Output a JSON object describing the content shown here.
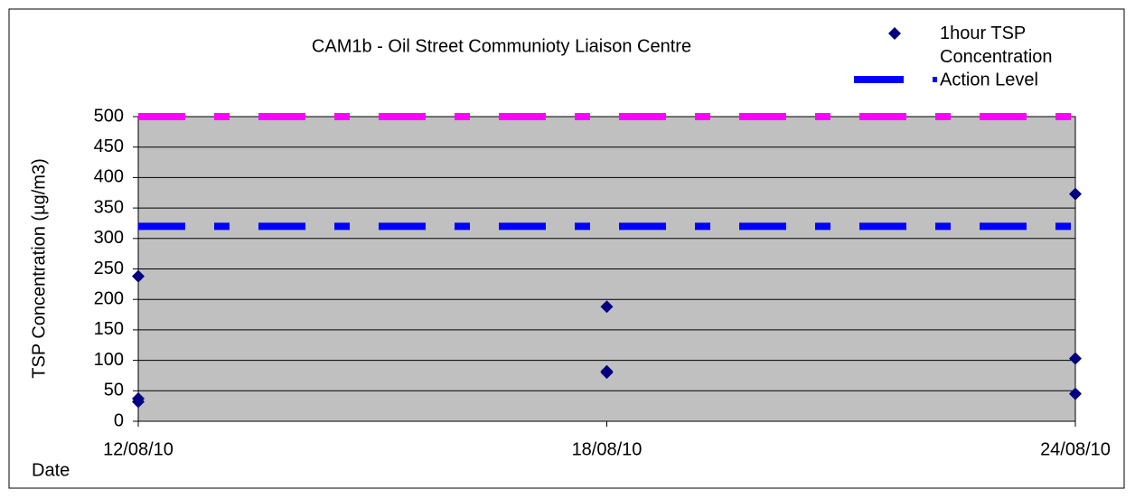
{
  "chart_data": {
    "type": "scatter",
    "title": "CAM1b - Oil Street Communioty Liaison Centre",
    "x_label": "Date",
    "y_label": "TSP Concentration (µg/m3)",
    "series": [
      {
        "name": "1hour TSP Concentration",
        "color": "#000080",
        "x": [
          "12/08/10",
          "12/08/10",
          "12/08/10",
          "18/08/10",
          "18/08/10",
          "18/08/10",
          "24/08/10",
          "24/08/10",
          "24/08/10"
        ],
        "values": [
          238,
          37,
          32,
          188,
          82,
          80,
          373,
          103,
          45
        ]
      }
    ],
    "reference_lines": [
      {
        "name": "Action Level",
        "value": 320,
        "color": "#0000ff"
      },
      {
        "value": 500,
        "color": "#ff00ff"
      }
    ],
    "xlim": [
      "12/08/10",
      "24/08/10"
    ],
    "xticks": [
      "12/08/10",
      "18/08/10",
      "24/08/10"
    ],
    "ylim": [
      0,
      500
    ],
    "yticks": [
      0,
      50,
      100,
      150,
      200,
      250,
      300,
      350,
      400,
      450,
      500
    ],
    "grid": true
  }
}
